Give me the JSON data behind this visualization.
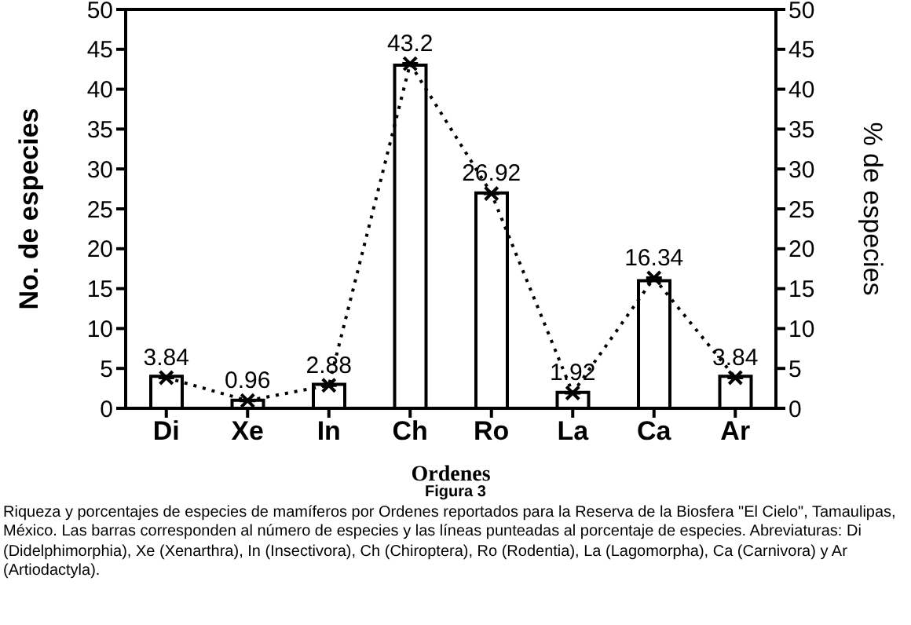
{
  "chart_data": {
    "type": "bar",
    "xlabel": "Ordenes",
    "ylabel": "No. de especies",
    "y2label": "% de especies",
    "categories": [
      "Di",
      "Xe",
      "In",
      "Ch",
      "Ro",
      "La",
      "Ca",
      "Ar"
    ],
    "series": [
      {
        "color": "#ffffff",
        "values": [
          4,
          1,
          3,
          43,
          27,
          2,
          16,
          4
        ]
      },
      {
        "type": "line",
        "axis": "y2",
        "color": "#000000",
        "values": [
          3.84,
          0.96,
          2.88,
          43.2,
          26.92,
          1.92,
          16.34,
          3.84
        ],
        "data_labels": true,
        "marker": "cross",
        "line_style": "dotted"
      }
    ],
    "ylim": [
      0,
      50
    ],
    "yticks": [
      0,
      5,
      10,
      15,
      20,
      25,
      30,
      35,
      40,
      45,
      50
    ],
    "y2lim": [
      0,
      50
    ],
    "y2ticks": [
      0,
      5,
      10,
      15,
      20,
      25,
      30,
      35,
      40,
      45,
      50
    ],
    "grid": false,
    "legend": false,
    "annotations": [
      "Figura 3",
      "Riqueza y porcentajes de especies de mamíferos por Ordenes reportados para la Reserva de la Biosfera \"El Cielo\", Tamaulipas, México. Las barras corresponden al número de especies y las líneas punteadas al porcentaje de especies. Abreviaturas: Di (Didelphimorphia), Xe (Xenarthra), In (Insectivora), Ch (Chiroptera), Ro (Rodentia), La (Lagomorpha), Ca (Carnivora) y Ar (Artiodactyla)."
    ]
  }
}
